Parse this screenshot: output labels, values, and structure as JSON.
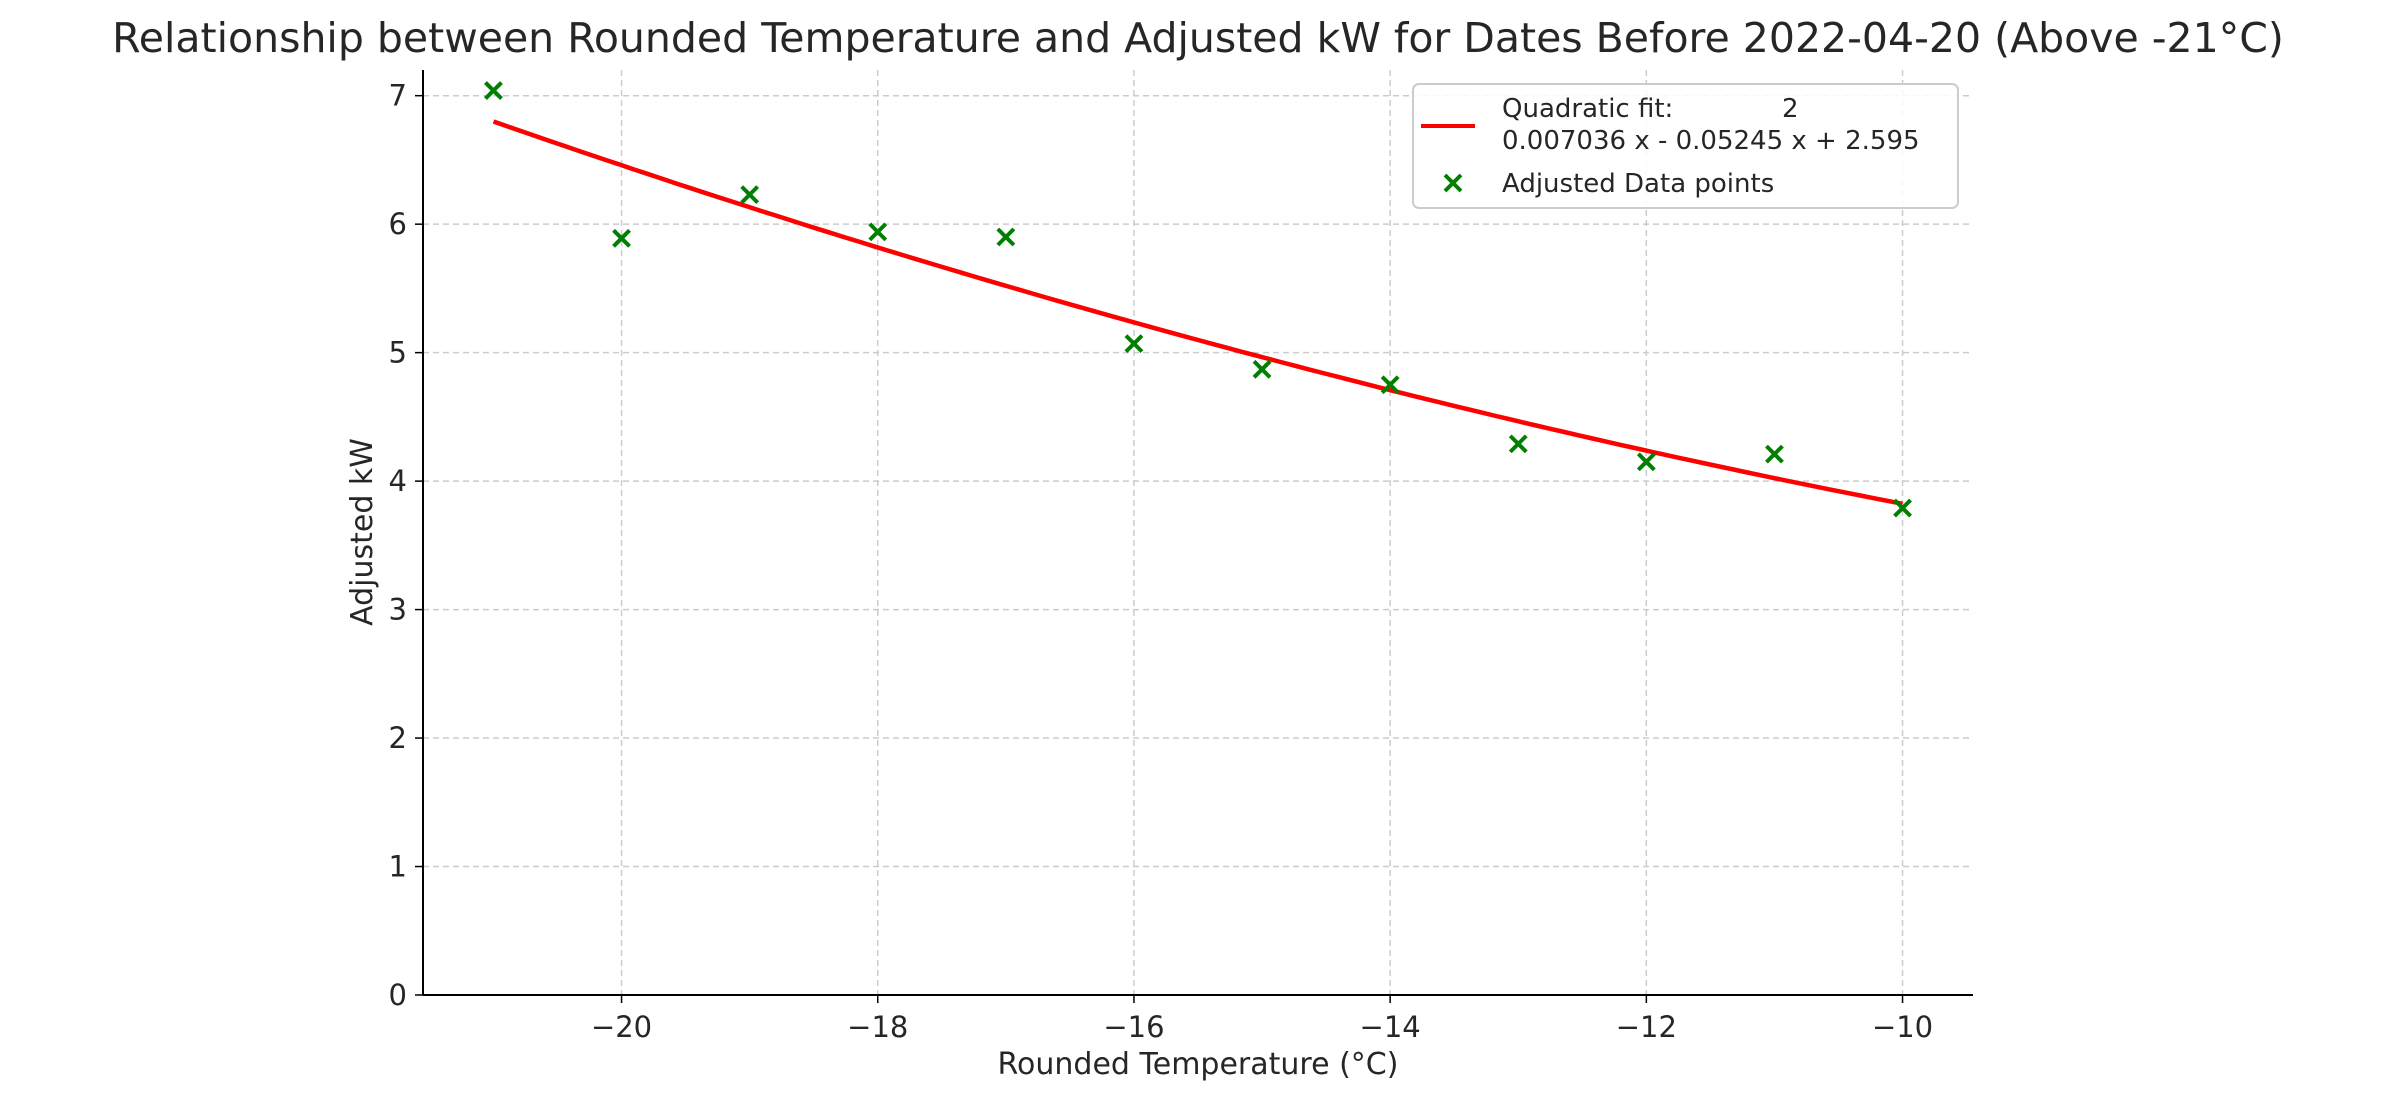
{
  "chart_data": {
    "type": "scatter",
    "title": "Relationship between Rounded Temperature and Adjusted kW for Dates Before 2022-04-20 (Above -21°C)",
    "xlabel": "Rounded Temperature (°C)",
    "ylabel": "Adjusted kW",
    "xlim": [
      -21.55,
      -9.45
    ],
    "ylim": [
      0,
      7.2
    ],
    "xticks": [
      -20,
      -18,
      -16,
      -14,
      -12,
      -10
    ],
    "xtick_labels": [
      "−20",
      "−18",
      "−16",
      "−14",
      "−12",
      "−10"
    ],
    "yticks": [
      0,
      1,
      2,
      3,
      4,
      5,
      6,
      7
    ],
    "ytick_labels": [
      "0",
      "1",
      "2",
      "3",
      "4",
      "5",
      "6",
      "7"
    ],
    "grid": true,
    "legend_placement": "top-right",
    "series": [
      {
        "name": "Adjusted Data points",
        "kind": "scatter",
        "marker": "x",
        "color": "#008000",
        "x": [
          -21,
          -20,
          -19,
          -18,
          -17,
          -16,
          -15,
          -14,
          -13,
          -12,
          -11,
          -10
        ],
        "y": [
          7.04,
          5.89,
          6.23,
          5.94,
          5.9,
          5.07,
          4.87,
          4.75,
          4.29,
          4.15,
          4.21,
          3.79
        ]
      },
      {
        "name": "Quadratic fit",
        "kind": "line",
        "color": "#ff0000",
        "coefficients": [
          0.007036,
          -0.05245,
          2.595
        ],
        "x_range": [
          -21,
          -10
        ]
      }
    ],
    "legend": {
      "fit_label_line1": "Quadratic fit:",
      "fit_exponent": "2",
      "fit_label_line2": "0.007036 x - 0.05245 x + 2.595",
      "points_label": "Adjusted Data points"
    }
  }
}
